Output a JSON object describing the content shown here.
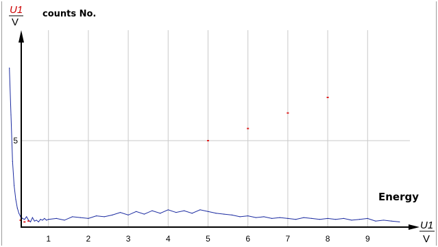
{
  "chart_data": {
    "type": "line",
    "title": "counts No.",
    "xlabel": "Energy",
    "x_unit": {
      "numerator": "U1",
      "denominator": "V"
    },
    "y_unit": {
      "numerator": "U1",
      "denominator": "V"
    },
    "xlim": [
      0,
      10
    ],
    "ylim": [
      0,
      9.4
    ],
    "x_ticks": [
      "1",
      "2",
      "3",
      "4",
      "5",
      "6",
      "7",
      "8",
      "9"
    ],
    "y_ticks": [
      "5"
    ],
    "grid": true,
    "colors": {
      "line": "#1a2aa0",
      "marker": "#e02020",
      "grid": "#c8c8c8",
      "axis": "#000000"
    },
    "series": [
      {
        "color": "#1a2aa0",
        "x": [
          0.02,
          0.06,
          0.1,
          0.14,
          0.18,
          0.22,
          0.26,
          0.3,
          0.35,
          0.4,
          0.45,
          0.5,
          0.55,
          0.6,
          0.65,
          0.7,
          0.75,
          0.8,
          0.85,
          0.9,
          0.95,
          1.0,
          1.2,
          1.4,
          1.6,
          1.8,
          2.0,
          2.2,
          2.4,
          2.6,
          2.8,
          3.0,
          3.2,
          3.4,
          3.6,
          3.8,
          4.0,
          4.2,
          4.4,
          4.6,
          4.8,
          5.0,
          5.2,
          5.4,
          5.6,
          5.8,
          6.0,
          6.2,
          6.4,
          6.6,
          6.8,
          7.0,
          7.2,
          7.4,
          7.6,
          7.8,
          8.0,
          8.2,
          8.4,
          8.6,
          8.8,
          9.0,
          9.2,
          9.4,
          9.6,
          9.8
        ],
        "y": [
          9.2,
          6.5,
          3.8,
          2.4,
          1.6,
          1.1,
          0.8,
          0.6,
          0.5,
          0.45,
          0.6,
          0.4,
          0.3,
          0.55,
          0.35,
          0.4,
          0.3,
          0.45,
          0.4,
          0.5,
          0.4,
          0.45,
          0.5,
          0.4,
          0.6,
          0.55,
          0.5,
          0.65,
          0.6,
          0.7,
          0.85,
          0.7,
          0.9,
          0.75,
          0.95,
          0.8,
          1.0,
          0.85,
          0.95,
          0.8,
          1.0,
          0.9,
          0.8,
          0.75,
          0.7,
          0.6,
          0.65,
          0.55,
          0.6,
          0.5,
          0.55,
          0.5,
          0.45,
          0.55,
          0.5,
          0.45,
          0.5,
          0.45,
          0.5,
          0.4,
          0.45,
          0.5,
          0.35,
          0.4,
          0.35,
          0.3
        ]
      },
      {
        "color": "#e02020",
        "x": [
          0.3,
          0.4,
          0.5,
          5.0,
          6.0,
          7.0,
          8.0
        ],
        "y": [
          0.4,
          0.3,
          0.35,
          5.0,
          5.7,
          6.6,
          7.5
        ]
      }
    ]
  }
}
